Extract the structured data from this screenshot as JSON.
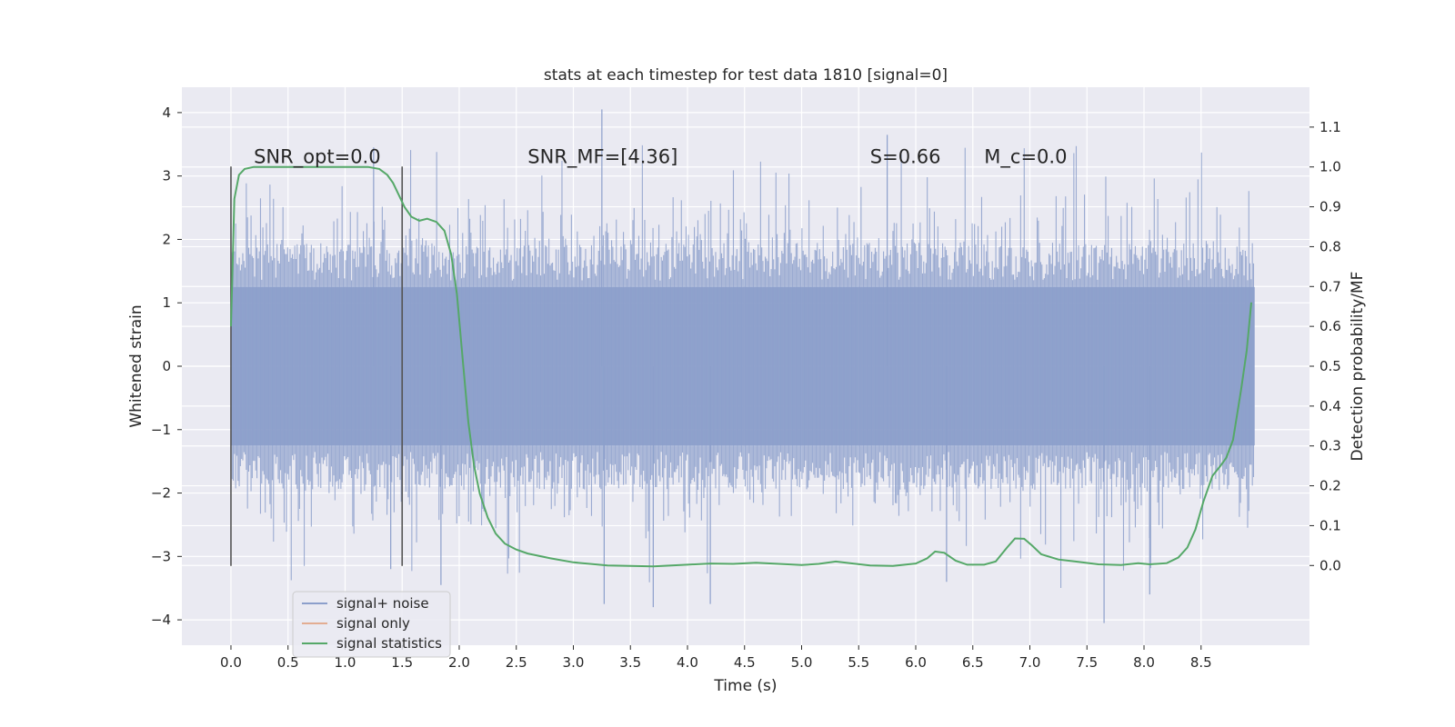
{
  "chart_data": {
    "type": "line",
    "title": "stats at each timestep for test data 1810 [signal=0]",
    "xlabel": "Time (s)",
    "ylabel": "Whitened strain",
    "y2label": "Detection probability/MF",
    "xlim": [
      -0.43,
      9.45
    ],
    "ylim": [
      -4.4,
      4.4
    ],
    "y2lim": [
      -0.2,
      1.2
    ],
    "x_ticks": [
      0.0,
      0.5,
      1.0,
      1.5,
      2.0,
      2.5,
      3.0,
      3.5,
      4.0,
      4.5,
      5.0,
      5.5,
      6.0,
      6.5,
      7.0,
      7.5,
      8.0,
      8.5
    ],
    "x_tick_labels": [
      "0.0",
      "0.5",
      "1.0",
      "1.5",
      "2.0",
      "2.5",
      "3.0",
      "3.5",
      "4.0",
      "4.5",
      "5.0",
      "5.5",
      "6.0",
      "6.5",
      "7.0",
      "7.5",
      "8.0",
      "8.5"
    ],
    "y_ticks": [
      -4,
      -3,
      -2,
      -1,
      0,
      1,
      2,
      3,
      4
    ],
    "y_tick_labels": [
      "−4",
      "−3",
      "−2",
      "−1",
      "0",
      "1",
      "2",
      "3",
      "4"
    ],
    "y2_ticks": [
      0.0,
      0.1,
      0.2,
      0.3,
      0.4,
      0.5,
      0.6,
      0.7,
      0.8,
      0.9,
      1.0,
      1.1
    ],
    "y2_tick_labels": [
      "0.0",
      "0.1",
      "0.2",
      "0.3",
      "0.4",
      "0.5",
      "0.6",
      "0.7",
      "0.8",
      "0.9",
      "1.0",
      "1.1"
    ],
    "grid": true,
    "legend_position": "bottom-left",
    "series": [
      {
        "name": "signal+ noise",
        "axis": "left",
        "color": "#8c9fcb",
        "style": "dense noise band",
        "x_range": [
          0.0,
          8.97
        ],
        "typical_envelope": [
          -1.8,
          1.9
        ],
        "max": 4.05,
        "min": -4.05
      },
      {
        "name": "signal only",
        "axis": "left",
        "color": "#dd8452",
        "values": []
      },
      {
        "name": "signal statistics",
        "axis": "right",
        "color": "#55a868",
        "x": [
          0.0,
          0.03,
          0.07,
          0.12,
          0.2,
          0.3,
          0.5,
          0.8,
          1.0,
          1.2,
          1.3,
          1.37,
          1.42,
          1.47,
          1.52,
          1.58,
          1.65,
          1.72,
          1.8,
          1.87,
          1.93,
          1.98,
          2.03,
          2.08,
          2.13,
          2.18,
          2.25,
          2.32,
          2.4,
          2.5,
          2.6,
          2.8,
          3.0,
          3.3,
          3.7,
          4.0,
          4.2,
          4.4,
          4.6,
          4.8,
          5.0,
          5.15,
          5.3,
          5.45,
          5.6,
          5.8,
          6.0,
          6.1,
          6.17,
          6.25,
          6.35,
          6.45,
          6.6,
          6.7,
          6.8,
          6.87,
          6.95,
          7.02,
          7.1,
          7.25,
          7.4,
          7.6,
          7.8,
          7.95,
          8.05,
          8.2,
          8.3,
          8.38,
          8.45,
          8.52,
          8.6,
          8.67,
          8.72,
          8.78,
          8.85,
          8.9,
          8.94
        ],
        "values": [
          0.6,
          0.92,
          0.98,
          0.995,
          1.0,
          1.0,
          1.0,
          1.0,
          1.0,
          1.0,
          0.995,
          0.98,
          0.96,
          0.93,
          0.9,
          0.875,
          0.865,
          0.87,
          0.862,
          0.84,
          0.78,
          0.68,
          0.52,
          0.36,
          0.25,
          0.18,
          0.12,
          0.08,
          0.055,
          0.04,
          0.03,
          0.018,
          0.008,
          0.0,
          -0.002,
          0.002,
          0.005,
          0.004,
          0.007,
          0.004,
          0.001,
          0.004,
          0.01,
          0.005,
          0.0,
          -0.001,
          0.005,
          0.018,
          0.035,
          0.032,
          0.012,
          0.002,
          0.002,
          0.01,
          0.045,
          0.068,
          0.067,
          0.05,
          0.028,
          0.015,
          0.01,
          0.003,
          0.001,
          0.006,
          0.003,
          0.006,
          0.02,
          0.045,
          0.09,
          0.16,
          0.225,
          0.25,
          0.27,
          0.315,
          0.44,
          0.54,
          0.66
        ]
      }
    ],
    "vertical_markers": [
      {
        "x": 0.0,
        "y_range": [
          -3.15,
          3.15
        ],
        "color": "#555555"
      },
      {
        "x": 1.5,
        "y_range": [
          -3.15,
          3.15
        ],
        "color": "#555555"
      }
    ],
    "annotations": [
      {
        "x": 0.2,
        "y": 3.2,
        "text": "SNR_opt=0.0"
      },
      {
        "x": 2.6,
        "y": 3.2,
        "text": "SNR_MF=[4.36]"
      },
      {
        "x": 5.6,
        "y": 3.2,
        "text": "S=0.66"
      },
      {
        "x": 6.6,
        "y": 3.2,
        "text": "M_c=0.0"
      }
    ]
  }
}
